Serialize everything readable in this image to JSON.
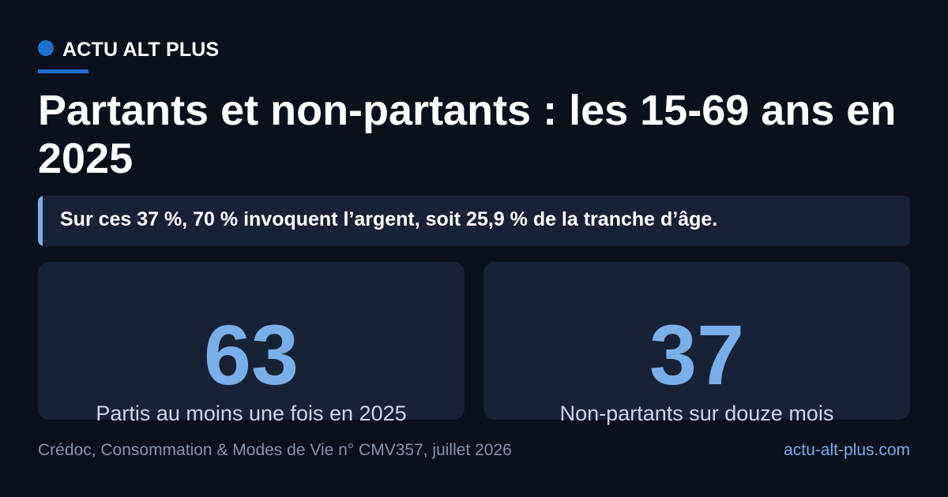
{
  "brand": {
    "name": "ACTU ALT PLUS",
    "dot_color": "#1e6fd0",
    "underline_color": "#1e6fd0"
  },
  "headline": "Partants et non-partants : les 15-69 ans en 2025",
  "callout": {
    "text": "Sur ces 37 %, 70 % invoquent l’argent, soit 25,9 % de la tranche d’âge.",
    "accent_color": "#7aaee8"
  },
  "stats": [
    {
      "value": "63",
      "label": "Partis au moins une fois en 2025"
    },
    {
      "value": "37",
      "label": "Non-partants sur douze mois"
    }
  ],
  "stat_color": "#7aaee8",
  "footer": {
    "source": "Crédoc, Consommation & Modes de Vie n° CMV357, juillet 2026",
    "site": "actu-alt-plus.com",
    "site_color": "#7aaee8"
  }
}
